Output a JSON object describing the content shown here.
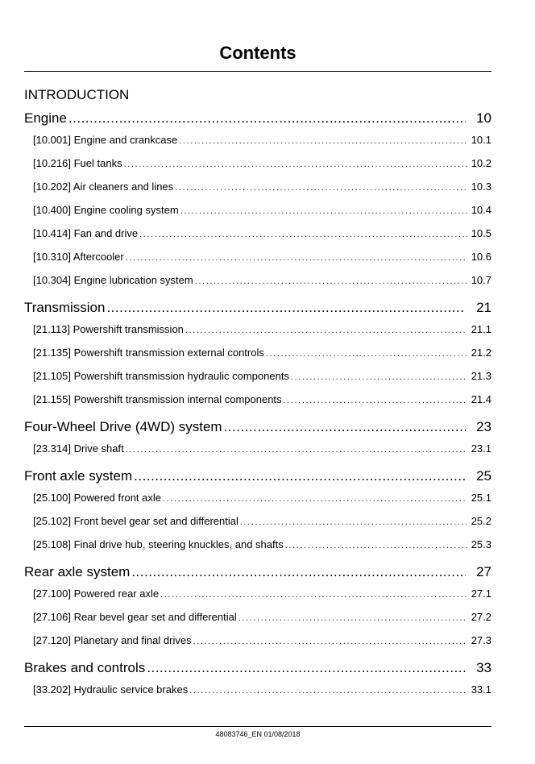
{
  "page": {
    "title": "Contents",
    "intro": "INTRODUCTION",
    "footer": "48083746_EN 01/08/2018"
  },
  "sections": [
    {
      "label": "Engine",
      "page": "10",
      "items": [
        {
          "label": "[10.001] Engine and crankcase",
          "page": "10.1"
        },
        {
          "label": "[10.216] Fuel tanks",
          "page": "10.2"
        },
        {
          "label": "[10.202] Air cleaners and lines",
          "page": "10.3"
        },
        {
          "label": "[10.400] Engine cooling system",
          "page": "10.4"
        },
        {
          "label": "[10.414] Fan and drive",
          "page": "10.5"
        },
        {
          "label": "[10.310] Aftercooler",
          "page": "10.6"
        },
        {
          "label": "[10.304] Engine lubrication system",
          "page": "10.7"
        }
      ]
    },
    {
      "label": "Transmission",
      "page": "21",
      "items": [
        {
          "label": "[21.113] Powershift transmission",
          "page": "21.1"
        },
        {
          "label": "[21.135] Powershift transmission external controls",
          "page": "21.2"
        },
        {
          "label": "[21.105] Powershift transmission hydraulic components",
          "page": "21.3"
        },
        {
          "label": "[21.155] Powershift transmission internal components",
          "page": "21.4"
        }
      ]
    },
    {
      "label": "Four-Wheel Drive (4WD) system",
      "page": "23",
      "items": [
        {
          "label": "[23.314] Drive shaft",
          "page": "23.1"
        }
      ]
    },
    {
      "label": "Front axle system",
      "page": "25",
      "items": [
        {
          "label": "[25.100] Powered front axle",
          "page": "25.1"
        },
        {
          "label": "[25.102] Front bevel gear set and differential",
          "page": "25.2"
        },
        {
          "label": "[25.108] Final drive hub, steering knuckles, and shafts",
          "page": "25.3"
        }
      ]
    },
    {
      "label": "Rear axle system",
      "page": "27",
      "items": [
        {
          "label": "[27.100] Powered rear axle",
          "page": "27.1"
        },
        {
          "label": "[27.106] Rear bevel gear set and differential",
          "page": "27.2"
        },
        {
          "label": "[27.120] Planetary and final drives",
          "page": "27.3"
        }
      ]
    },
    {
      "label": "Brakes and controls",
      "page": "33",
      "items": [
        {
          "label": "[33.202] Hydraulic service brakes",
          "page": "33.1"
        }
      ]
    }
  ]
}
